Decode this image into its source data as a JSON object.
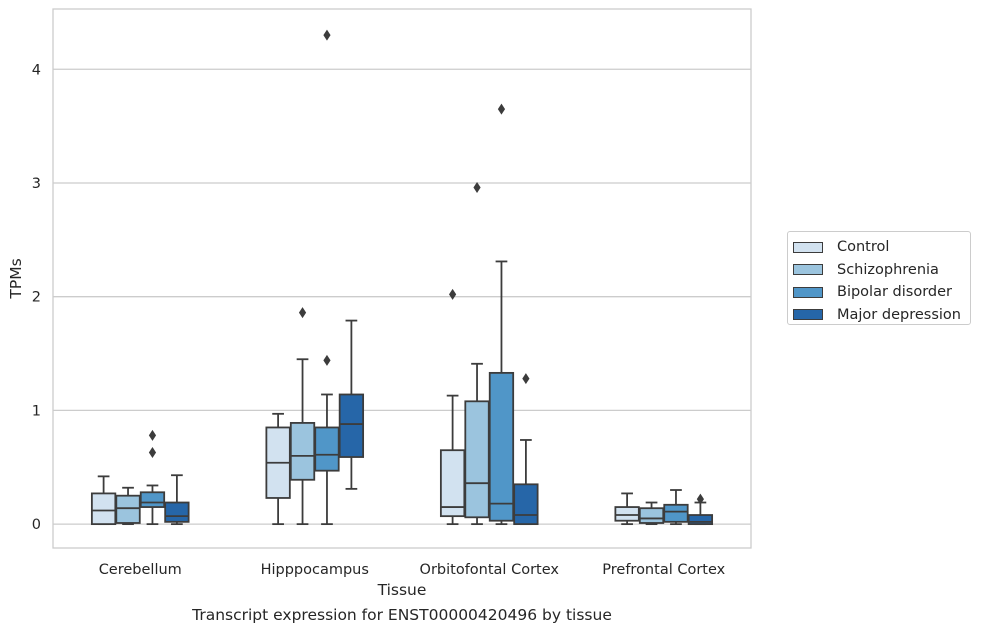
{
  "caption": "Transcript expression for ENST00000420496 by tissue",
  "chart_data": {
    "type": "boxplot",
    "xlabel": "Tissue",
    "ylabel": "TPMs",
    "ylim": [
      -0.21,
      4.53
    ],
    "yticks": [
      0,
      1,
      2,
      3,
      4
    ],
    "grid": "horizontal",
    "legend_position": "outside-right",
    "categories": [
      "Cerebellum",
      "Hipppocampus",
      "Orbitofontal Cortex",
      "Prefrontal Cortex"
    ],
    "series": [
      {
        "name": "Control",
        "color": "#d2e2f0",
        "boxes": [
          {
            "whisker_low": 0.0,
            "q1": 0.0,
            "median": 0.12,
            "q3": 0.27,
            "whisker_high": 0.42,
            "outliers": []
          },
          {
            "whisker_low": 0.0,
            "q1": 0.23,
            "median": 0.54,
            "q3": 0.85,
            "whisker_high": 0.97,
            "outliers": []
          },
          {
            "whisker_low": 0.0,
            "q1": 0.07,
            "median": 0.15,
            "q3": 0.65,
            "whisker_high": 1.13,
            "outliers": [
              2.02
            ]
          },
          {
            "whisker_low": 0.0,
            "q1": 0.03,
            "median": 0.08,
            "q3": 0.15,
            "whisker_high": 0.27,
            "outliers": []
          }
        ]
      },
      {
        "name": "Schizophrenia",
        "color": "#9bc4de",
        "boxes": [
          {
            "whisker_low": 0.0,
            "q1": 0.01,
            "median": 0.14,
            "q3": 0.25,
            "whisker_high": 0.32,
            "outliers": []
          },
          {
            "whisker_low": 0.0,
            "q1": 0.39,
            "median": 0.6,
            "q3": 0.89,
            "whisker_high": 1.45,
            "outliers": [
              1.86
            ]
          },
          {
            "whisker_low": 0.0,
            "q1": 0.06,
            "median": 0.36,
            "q3": 1.08,
            "whisker_high": 1.41,
            "outliers": [
              2.96
            ]
          },
          {
            "whisker_low": 0.0,
            "q1": 0.01,
            "median": 0.05,
            "q3": 0.14,
            "whisker_high": 0.19,
            "outliers": []
          }
        ]
      },
      {
        "name": "Bipolar disorder",
        "color": "#5096c8",
        "boxes": [
          {
            "whisker_low": 0.0,
            "q1": 0.15,
            "median": 0.19,
            "q3": 0.28,
            "whisker_high": 0.34,
            "outliers": [
              0.63,
              0.78
            ]
          },
          {
            "whisker_low": 0.0,
            "q1": 0.47,
            "median": 0.61,
            "q3": 0.85,
            "whisker_high": 1.14,
            "outliers": [
              1.44,
              4.3
            ]
          },
          {
            "whisker_low": 0.0,
            "q1": 0.03,
            "median": 0.18,
            "q3": 1.33,
            "whisker_high": 2.31,
            "outliers": [
              3.65
            ]
          },
          {
            "whisker_low": 0.0,
            "q1": 0.02,
            "median": 0.11,
            "q3": 0.17,
            "whisker_high": 0.3,
            "outliers": []
          }
        ]
      },
      {
        "name": "Major depression",
        "color": "#2666a8",
        "boxes": [
          {
            "whisker_low": 0.0,
            "q1": 0.02,
            "median": 0.07,
            "q3": 0.19,
            "whisker_high": 0.43,
            "outliers": []
          },
          {
            "whisker_low": 0.31,
            "q1": 0.59,
            "median": 0.88,
            "q3": 1.14,
            "whisker_high": 1.79,
            "outliers": []
          },
          {
            "whisker_low": 0.0,
            "q1": 0.0,
            "median": 0.08,
            "q3": 0.35,
            "whisker_high": 0.74,
            "outliers": [
              1.28
            ]
          },
          {
            "whisker_low": 0.0,
            "q1": 0.0,
            "median": 0.02,
            "q3": 0.08,
            "whisker_high": 0.19,
            "outliers": [
              0.22
            ]
          }
        ]
      }
    ]
  }
}
